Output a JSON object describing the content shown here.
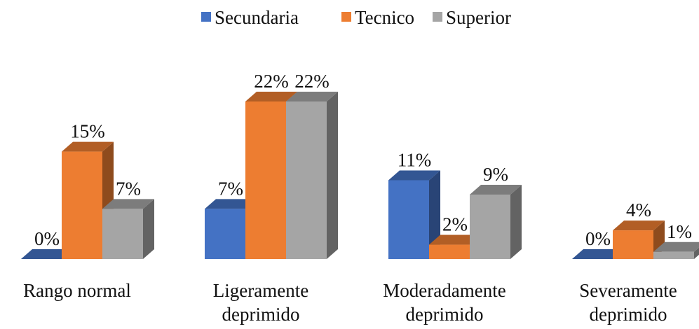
{
  "chart_data": {
    "type": "bar3d",
    "categories": [
      "Rango normal",
      "Ligeramente deprimido",
      "Moderadamente deprimido",
      "Severamente deprimido"
    ],
    "series": [
      {
        "name": "Secundaria",
        "color": "#4472c4",
        "values": [
          0,
          7,
          11,
          0
        ],
        "value_labels": [
          "0%",
          "7%",
          "11%",
          "0%"
        ]
      },
      {
        "name": "Tecnico",
        "color": "#ed7d31",
        "values": [
          15,
          22,
          2,
          4
        ],
        "value_labels": [
          "15%",
          "22%",
          "2%",
          "4%"
        ]
      },
      {
        "name": "Superior",
        "color": "#a5a5a5",
        "values": [
          7,
          22,
          9,
          1
        ],
        "value_labels": [
          "7%",
          "22%",
          "9%",
          "1%"
        ]
      }
    ],
    "legend": "top"
  }
}
